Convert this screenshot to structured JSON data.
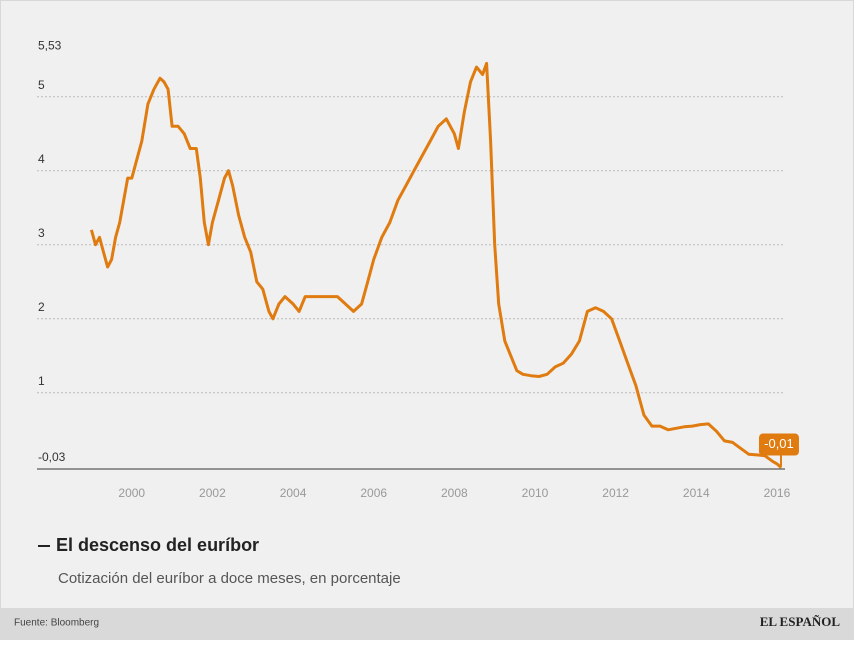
{
  "chart_data": {
    "type": "line",
    "title": "El descenso del euríbor",
    "subtitle": "Cotización del euríbor a doce meses, en porcentaje",
    "source": "Fuente: Bloomberg",
    "brand": "EL ESPAÑOL",
    "xlim": [
      1997.65,
      2016.2
    ],
    "xticks": [
      2000,
      2002,
      2004,
      2006,
      2008,
      2010,
      2012,
      2014,
      2016
    ],
    "ylim": [
      -0.03,
      5.53
    ],
    "yticks": [
      {
        "value": -0.03,
        "label": "-0,03"
      },
      1,
      2,
      3,
      4,
      5,
      {
        "value": 5.53,
        "label": "5,53"
      }
    ],
    "grid": true,
    "series": [
      {
        "color": "#e07b10",
        "x": [
          1999.0,
          1999.1,
          1999.2,
          1999.3,
          1999.4,
          1999.5,
          1999.6,
          1999.7,
          1999.8,
          1999.9,
          2000.0,
          2000.1,
          2000.25,
          2000.4,
          2000.55,
          2000.7,
          2000.8,
          2000.9,
          2001.0,
          2001.15,
          2001.3,
          2001.45,
          2001.6,
          2001.7,
          2001.8,
          2001.9,
          2002.0,
          2002.15,
          2002.3,
          2002.4,
          2002.5,
          2002.65,
          2002.8,
          2002.95,
          2003.1,
          2003.25,
          2003.4,
          2003.5,
          2003.65,
          2003.8,
          2004.0,
          2004.15,
          2004.3,
          2004.5,
          2004.7,
          2004.9,
          2005.1,
          2005.3,
          2005.5,
          2005.7,
          2005.85,
          2006.0,
          2006.2,
          2006.4,
          2006.6,
          2006.8,
          2007.0,
          2007.2,
          2007.4,
          2007.6,
          2007.8,
          2008.0,
          2008.1,
          2008.25,
          2008.4,
          2008.55,
          2008.7,
          2008.8,
          2008.9,
          2009.0,
          2009.1,
          2009.25,
          2009.4,
          2009.55,
          2009.7,
          2009.9,
          2010.1,
          2010.3,
          2010.5,
          2010.7,
          2010.9,
          2011.1,
          2011.3,
          2011.5,
          2011.7,
          2011.9,
          2012.1,
          2012.3,
          2012.5,
          2012.7,
          2012.9,
          2013.1,
          2013.3,
          2013.5,
          2013.7,
          2013.9,
          2014.1,
          2014.3,
          2014.5,
          2014.7,
          2014.9,
          2015.1,
          2015.3,
          2015.5,
          2015.7,
          2015.9,
          2016.0,
          2016.1
        ],
        "values": [
          3.2,
          3.0,
          3.1,
          2.9,
          2.7,
          2.8,
          3.1,
          3.3,
          3.6,
          3.9,
          3.9,
          4.1,
          4.4,
          4.9,
          5.1,
          5.25,
          5.2,
          5.1,
          4.6,
          4.6,
          4.5,
          4.3,
          4.3,
          3.9,
          3.3,
          3.0,
          3.3,
          3.6,
          3.9,
          4.0,
          3.8,
          3.4,
          3.1,
          2.9,
          2.5,
          2.4,
          2.1,
          2.0,
          2.2,
          2.3,
          2.2,
          2.1,
          2.3,
          2.3,
          2.3,
          2.3,
          2.3,
          2.2,
          2.1,
          2.2,
          2.5,
          2.8,
          3.1,
          3.3,
          3.6,
          3.8,
          4.0,
          4.2,
          4.4,
          4.6,
          4.7,
          4.5,
          4.3,
          4.8,
          5.2,
          5.4,
          5.3,
          5.45,
          4.4,
          3.0,
          2.2,
          1.7,
          1.5,
          1.3,
          1.25,
          1.23,
          1.22,
          1.25,
          1.35,
          1.4,
          1.52,
          1.7,
          2.1,
          2.15,
          2.1,
          2.0,
          1.7,
          1.4,
          1.1,
          0.7,
          0.55,
          0.55,
          0.5,
          0.52,
          0.54,
          0.55,
          0.57,
          0.58,
          0.48,
          0.35,
          0.33,
          0.25,
          0.17,
          0.16,
          0.15,
          0.07,
          0.04,
          -0.01
        ]
      }
    ],
    "end_label": {
      "value": -0.01,
      "label": "-0,01"
    }
  }
}
